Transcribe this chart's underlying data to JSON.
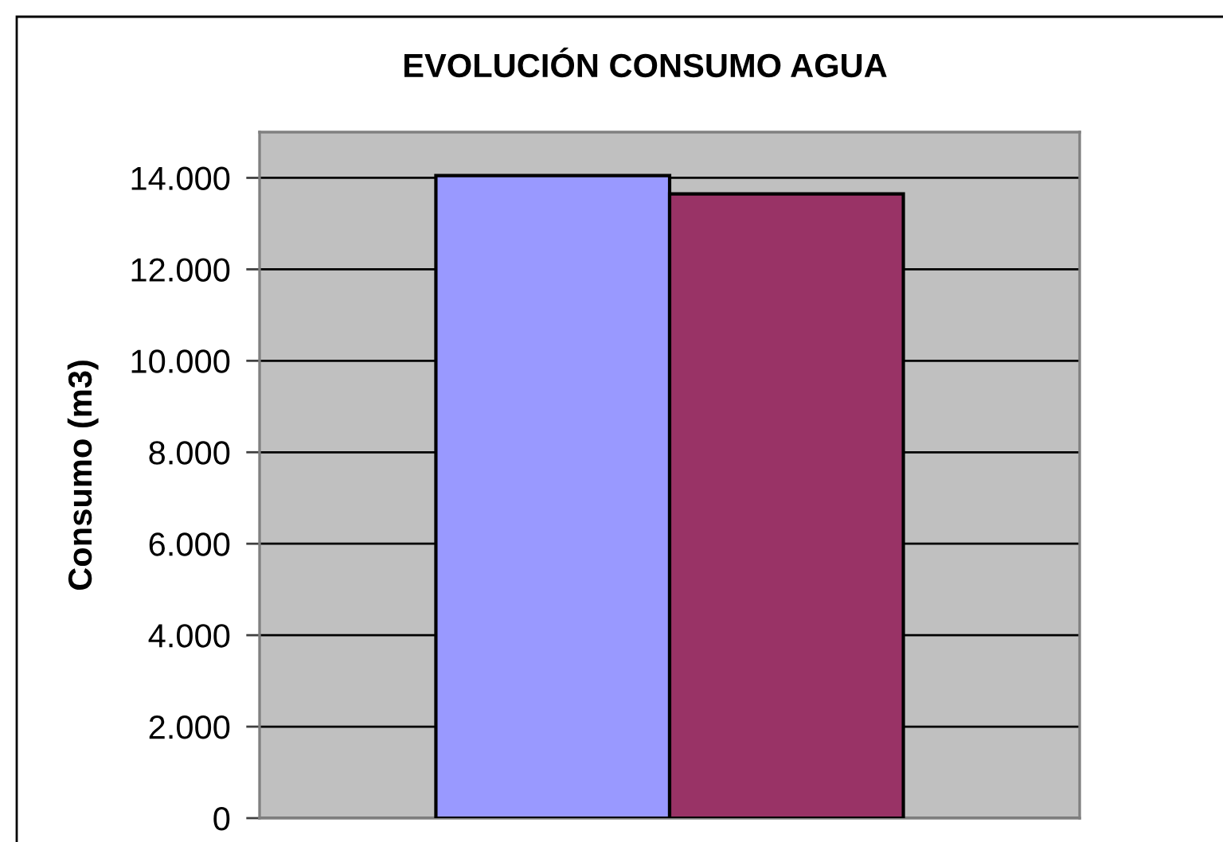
{
  "chart_data": {
    "type": "bar",
    "title": "EVOLUCIÓN CONSUMO AGUA",
    "ylabel": "Consumo (m3)",
    "categories": [
      null
    ],
    "series": [
      {
        "color": "#9999ff",
        "values": [
          14050
        ]
      },
      {
        "color": "#993366",
        "values": [
          13650
        ]
      }
    ],
    "ylim": [
      0,
      15000
    ],
    "yticks": [
      0,
      {
        "value": 2000,
        "label": "2.000"
      },
      {
        "value": 4000,
        "label": "4.000"
      },
      {
        "value": 6000,
        "label": "6.000"
      },
      {
        "value": 8000,
        "label": "8.000"
      },
      {
        "value": 10000,
        "label": "10.000"
      },
      {
        "value": 12000,
        "label": "12.000"
      },
      {
        "value": 14000,
        "label": "14.000"
      }
    ],
    "grid": "y",
    "tick_labels": "y"
  }
}
